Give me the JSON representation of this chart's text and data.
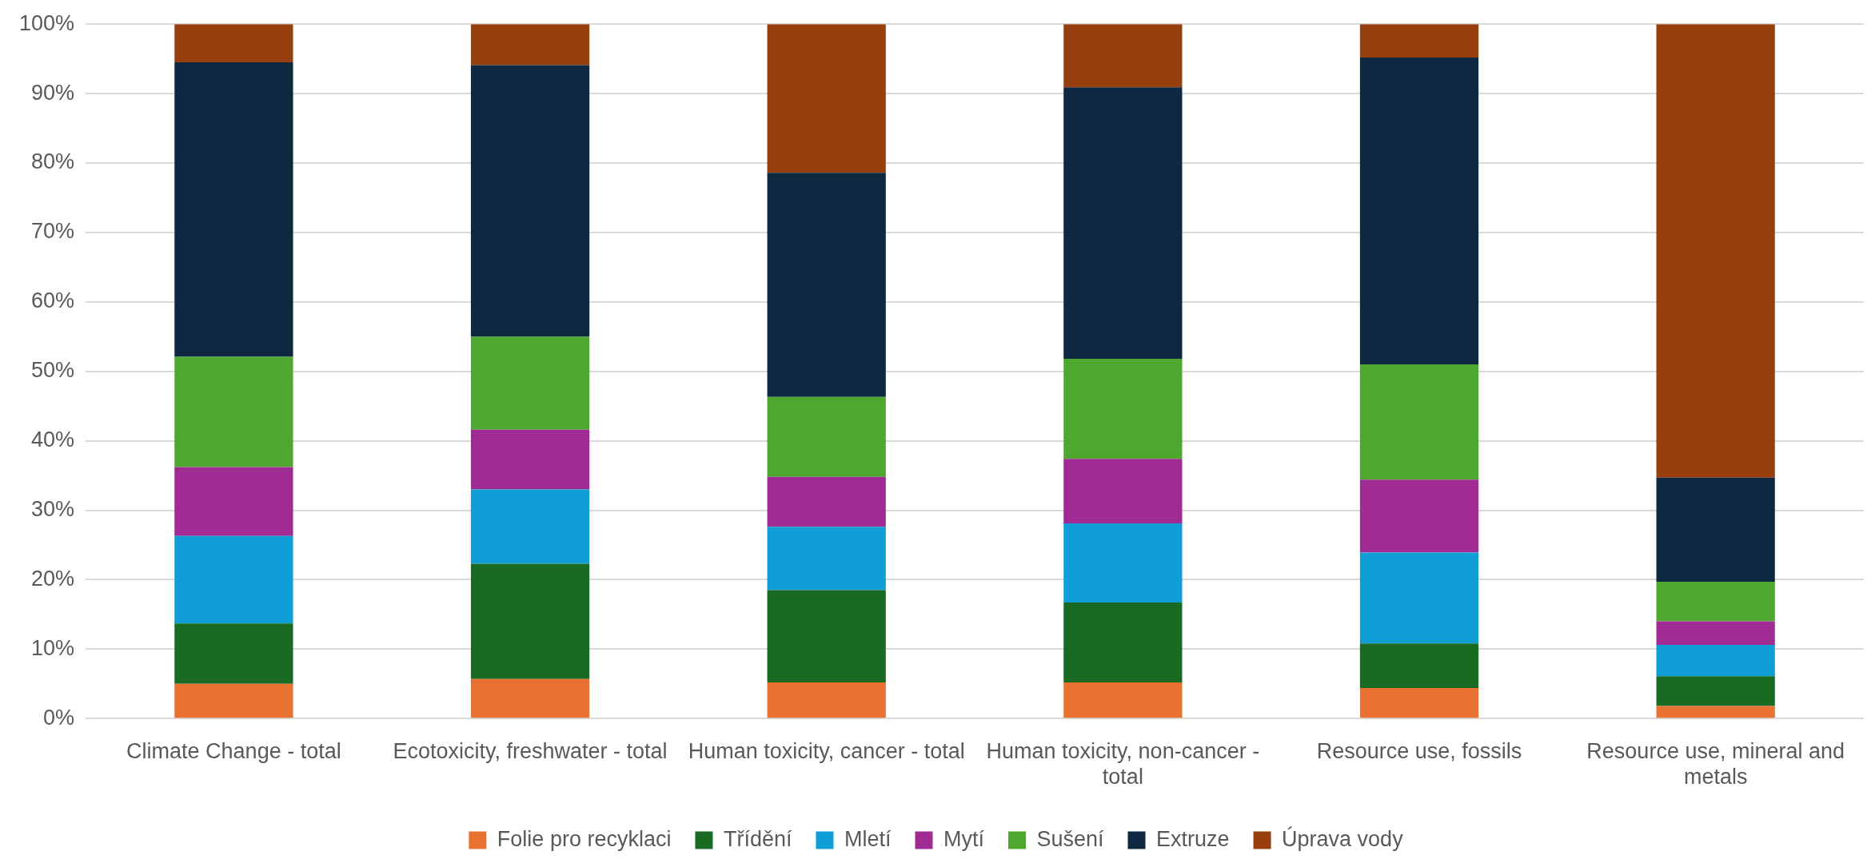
{
  "chart_data": {
    "type": "bar",
    "stacked": true,
    "categories": [
      "Climate Change - total",
      "Ecotoxicity, freshwater - total",
      "Human toxicity, cancer - total",
      "Human toxicity, non-cancer - total",
      "Resource use, fossils",
      "Resource use, mineral and metals"
    ],
    "series": [
      {
        "name": "Folie pro recyklaci",
        "color": "#e97132",
        "values": [
          5.0,
          5.7,
          5.2,
          5.2,
          4.4,
          1.8
        ]
      },
      {
        "name": "Třídění",
        "color": "#196b24",
        "values": [
          8.7,
          16.6,
          13.3,
          11.5,
          6.4,
          4.3
        ]
      },
      {
        "name": "Mletí",
        "color": "#0f9ed5",
        "values": [
          12.6,
          10.7,
          9.1,
          11.4,
          13.1,
          4.5
        ]
      },
      {
        "name": "Mytí",
        "color": "#a02b93",
        "values": [
          9.9,
          8.6,
          7.2,
          9.3,
          10.5,
          3.4
        ]
      },
      {
        "name": "Sušení",
        "color": "#4ea72e",
        "values": [
          15.9,
          13.4,
          11.5,
          14.4,
          16.6,
          5.7
        ]
      },
      {
        "name": "Extruze",
        "color": "#0e2841",
        "values": [
          42.4,
          39.1,
          32.3,
          39.1,
          44.2,
          15.0
        ]
      },
      {
        "name": "Úprava vody",
        "color": "#973f0f",
        "values": [
          5.5,
          5.9,
          21.4,
          9.1,
          4.8,
          65.3
        ]
      }
    ],
    "ylim": [
      0,
      100
    ],
    "yticks": [
      {
        "value": 0,
        "label": "0%"
      },
      {
        "value": 10,
        "label": "10%"
      },
      {
        "value": 20,
        "label": "20%"
      },
      {
        "value": 30,
        "label": "30%"
      },
      {
        "value": 40,
        "label": "40%"
      },
      {
        "value": 50,
        "label": "50%"
      },
      {
        "value": 60,
        "label": "60%"
      },
      {
        "value": 70,
        "label": "70%"
      },
      {
        "value": 80,
        "label": "80%"
      },
      {
        "value": 90,
        "label": "90%"
      },
      {
        "value": 100,
        "label": "100%"
      }
    ],
    "grid": "y",
    "legend": "bottom"
  }
}
